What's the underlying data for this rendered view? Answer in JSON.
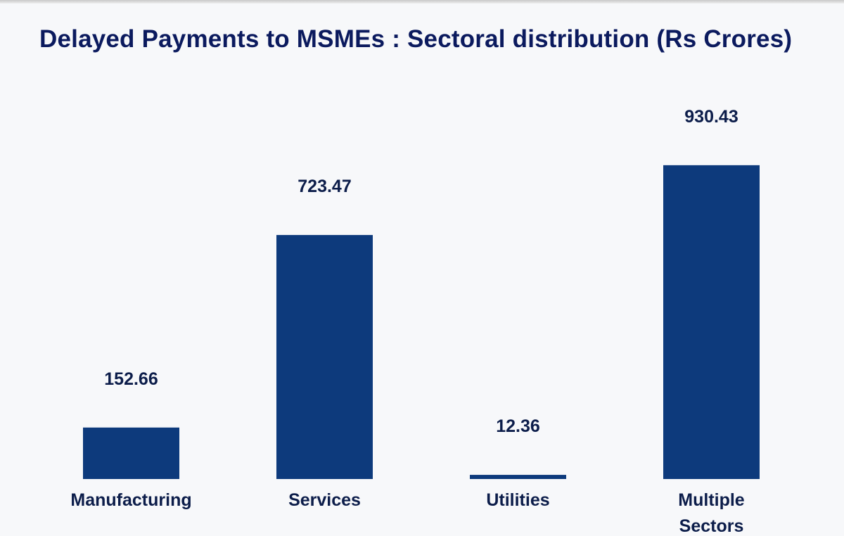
{
  "chart_data": {
    "type": "bar",
    "title": "Delayed Payments to MSMEs : Sectoral distribution (Rs Crores)",
    "categories": [
      [
        "Manufacturing"
      ],
      [
        "Services"
      ],
      [
        "Utilities"
      ],
      [
        "Multiple",
        "Sectors"
      ]
    ],
    "values": [
      152.66,
      723.47,
      12.36,
      930.43
    ],
    "value_labels": [
      "152.66",
      "723.47",
      "12.36",
      "930.43"
    ],
    "xlabel": "",
    "ylabel": "",
    "ylim": [
      0,
      1000
    ],
    "grid": false,
    "legend": "none",
    "bar_color": "#0d3a7c"
  }
}
